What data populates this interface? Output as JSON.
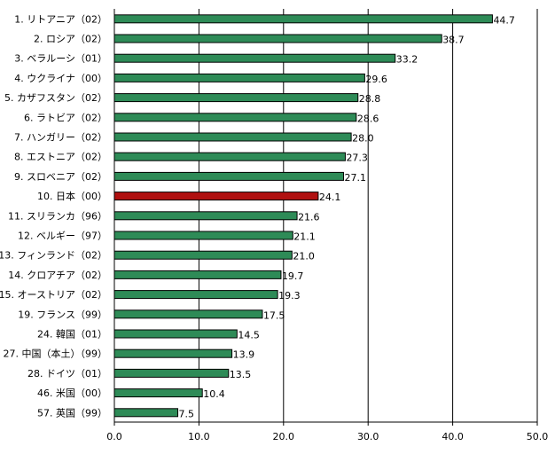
{
  "chart_data": {
    "type": "bar",
    "orientation": "horizontal",
    "categories": [
      "1. リトアニア（02）",
      "2. ロシア（02）",
      "3. ベラルーシ（01）",
      "4. ウクライナ（00）",
      "5. カザフスタン（02）",
      "6. ラトビア（02）",
      "7. ハンガリー（02）",
      "8. エストニア（02）",
      "9. スロベニア（02）",
      "10. 日本（00）",
      "11. スリランカ（96）",
      "12. ベルギー（97）",
      "13. フィンランド（02）",
      "14. クロアチア（02）",
      "15. オーストリア（02）",
      "19. フランス（99）",
      "24. 韓国（01）",
      "27. 中国（本土）（99）",
      "28. ドイツ（01）",
      "46. 米国（00）",
      "57. 英国（99）"
    ],
    "values": [
      44.7,
      38.7,
      33.2,
      29.6,
      28.8,
      28.6,
      28.0,
      27.3,
      27.1,
      24.1,
      21.6,
      21.1,
      21.0,
      19.7,
      19.3,
      17.5,
      14.5,
      13.9,
      13.5,
      10.4,
      7.5
    ],
    "value_labels": [
      "44.7",
      "38.7",
      "33.2",
      "29.6",
      "28.8",
      "28.6",
      "28.0",
      "27.3",
      "27.1",
      "24.1",
      "21.6",
      "21.1",
      "21.0",
      "19.7",
      "19.3",
      "17.5",
      "14.5",
      "13.9",
      "13.5",
      "10.4",
      "7.5"
    ],
    "highlight_index": 9,
    "xlim": [
      0,
      50
    ],
    "x_ticks": [
      "0.0",
      "10.0",
      "20.0",
      "30.0",
      "40.0",
      "50.0"
    ],
    "x_tick_values": [
      0,
      10,
      20,
      30,
      40,
      50
    ],
    "grid": "vertical",
    "legend": "none",
    "colors": {
      "bar": "#2e8b57",
      "bar_highlight": "#b01010",
      "bar_border": "#000000",
      "grid": "#000000",
      "axis": "#000000"
    }
  }
}
